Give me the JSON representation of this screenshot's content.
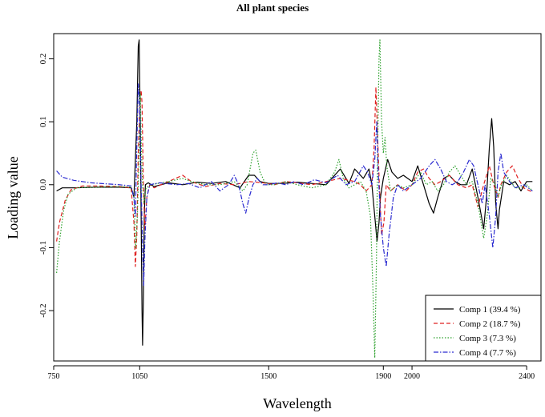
{
  "chart_data": {
    "type": "line",
    "title": "All plant species",
    "xlabel": "Wavelength",
    "ylabel": "Loading value",
    "xlim": [
      750,
      2450
    ],
    "ylim": [
      -0.28,
      0.24
    ],
    "x_ticks": [
      {
        "value": 750,
        "label": "750"
      },
      {
        "value": 1050,
        "label": "1050"
      },
      {
        "value": 1500,
        "label": "1500"
      },
      {
        "value": 1900,
        "label": "1900"
      },
      {
        "value": 2000,
        "label": "2000"
      },
      {
        "value": 2400,
        "label": "2400"
      }
    ],
    "y_ticks": [
      {
        "value": 0.2,
        "label": "0.2"
      },
      {
        "value": 0.1,
        "label": "0.1"
      },
      {
        "value": 0.0,
        "label": "0.0"
      },
      {
        "value": -0.1,
        "label": "-0.1"
      },
      {
        "value": -0.2,
        "label": "-0.2"
      }
    ],
    "grid": false,
    "legend_position": "bottom-right",
    "series": [
      {
        "name": "Comp 1 (39.4 %)",
        "color": "#000000",
        "dash": "solid",
        "points": [
          [
            760,
            -0.01
          ],
          [
            780,
            -0.005
          ],
          [
            820,
            -0.005
          ],
          [
            900,
            -0.004
          ],
          [
            980,
            -0.004
          ],
          [
            1020,
            -0.005
          ],
          [
            1030,
            -0.02
          ],
          [
            1040,
            0.1
          ],
          [
            1045,
            0.22
          ],
          [
            1048,
            0.23
          ],
          [
            1052,
            0.1
          ],
          [
            1055,
            -0.05
          ],
          [
            1058,
            -0.2
          ],
          [
            1060,
            -0.255
          ],
          [
            1063,
            -0.18
          ],
          [
            1066,
            -0.05
          ],
          [
            1070,
            0.0
          ],
          [
            1080,
            0.003
          ],
          [
            1100,
            -0.003
          ],
          [
            1150,
            0.003
          ],
          [
            1200,
            0.0
          ],
          [
            1250,
            0.004
          ],
          [
            1300,
            0.002
          ],
          [
            1350,
            0.005
          ],
          [
            1400,
            -0.005
          ],
          [
            1430,
            0.015
          ],
          [
            1450,
            0.015
          ],
          [
            1470,
            0.005
          ],
          [
            1500,
            0.002
          ],
          [
            1550,
            0.002
          ],
          [
            1600,
            0.004
          ],
          [
            1650,
            0.002
          ],
          [
            1700,
            0.0
          ],
          [
            1750,
            0.025
          ],
          [
            1780,
            0.002
          ],
          [
            1800,
            0.025
          ],
          [
            1810,
            0.02
          ],
          [
            1830,
            0.01
          ],
          [
            1850,
            0.025
          ],
          [
            1860,
            0.0
          ],
          [
            1870,
            -0.05
          ],
          [
            1878,
            -0.09
          ],
          [
            1885,
            -0.06
          ],
          [
            1890,
            -0.02
          ],
          [
            1900,
            0.01
          ],
          [
            1915,
            0.04
          ],
          [
            1930,
            0.02
          ],
          [
            1950,
            0.01
          ],
          [
            1970,
            0.015
          ],
          [
            2000,
            0.005
          ],
          [
            2020,
            0.03
          ],
          [
            2040,
            0.0
          ],
          [
            2060,
            -0.03
          ],
          [
            2075,
            -0.045
          ],
          [
            2090,
            -0.02
          ],
          [
            2110,
            0.01
          ],
          [
            2130,
            0.015
          ],
          [
            2150,
            0.005
          ],
          [
            2170,
            0.0
          ],
          [
            2190,
            0.0
          ],
          [
            2210,
            0.025
          ],
          [
            2230,
            -0.02
          ],
          [
            2250,
            -0.07
          ],
          [
            2260,
            -0.02
          ],
          [
            2270,
            0.06
          ],
          [
            2278,
            0.105
          ],
          [
            2285,
            0.06
          ],
          [
            2292,
            -0.03
          ],
          [
            2300,
            -0.07
          ],
          [
            2305,
            -0.04
          ],
          [
            2320,
            0.005
          ],
          [
            2340,
            0.0
          ],
          [
            2360,
            0.005
          ],
          [
            2380,
            -0.01
          ],
          [
            2400,
            0.005
          ],
          [
            2420,
            0.005
          ]
        ]
      },
      {
        "name": "Comp 2 (18.7 %)",
        "color": "#df2020",
        "dash": "dashed",
        "points": [
          [
            760,
            -0.09
          ],
          [
            770,
            -0.06
          ],
          [
            790,
            -0.025
          ],
          [
            810,
            -0.008
          ],
          [
            850,
            -0.002
          ],
          [
            900,
            -0.002
          ],
          [
            980,
            -0.003
          ],
          [
            1020,
            -0.005
          ],
          [
            1030,
            -0.06
          ],
          [
            1035,
            -0.13
          ],
          [
            1040,
            -0.08
          ],
          [
            1045,
            0.05
          ],
          [
            1050,
            0.12
          ],
          [
            1055,
            0.15
          ],
          [
            1058,
            0.13
          ],
          [
            1063,
            0.0
          ],
          [
            1068,
            -0.07
          ],
          [
            1075,
            -0.02
          ],
          [
            1085,
            0.0
          ],
          [
            1100,
            -0.005
          ],
          [
            1150,
            0.005
          ],
          [
            1200,
            0.015
          ],
          [
            1230,
            0.005
          ],
          [
            1280,
            -0.003
          ],
          [
            1330,
            0.002
          ],
          [
            1380,
            0.0
          ],
          [
            1430,
            0.005
          ],
          [
            1480,
            0.003
          ],
          [
            1520,
            0.0
          ],
          [
            1560,
            0.005
          ],
          [
            1600,
            0.003
          ],
          [
            1650,
            0.0
          ],
          [
            1700,
            0.005
          ],
          [
            1750,
            0.01
          ],
          [
            1800,
            0.005
          ],
          [
            1820,
            0.0
          ],
          [
            1840,
            -0.01
          ],
          [
            1860,
            0.0
          ],
          [
            1868,
            0.06
          ],
          [
            1874,
            0.155
          ],
          [
            1880,
            0.08
          ],
          [
            1886,
            0.0
          ],
          [
            1894,
            -0.08
          ],
          [
            1902,
            -0.06
          ],
          [
            1910,
            0.0
          ],
          [
            1925,
            -0.01
          ],
          [
            1950,
            0.0
          ],
          [
            1980,
            -0.01
          ],
          [
            2000,
            0.0
          ],
          [
            2020,
            0.02
          ],
          [
            2040,
            0.025
          ],
          [
            2060,
            0.01
          ],
          [
            2080,
            0.0
          ],
          [
            2100,
            0.005
          ],
          [
            2130,
            0.015
          ],
          [
            2160,
            0.0
          ],
          [
            2190,
            -0.005
          ],
          [
            2210,
            0.0
          ],
          [
            2230,
            -0.035
          ],
          [
            2250,
            0.0
          ],
          [
            2270,
            0.03
          ],
          [
            2285,
            0.0
          ],
          [
            2300,
            -0.02
          ],
          [
            2310,
            0.0
          ],
          [
            2330,
            0.02
          ],
          [
            2350,
            0.03
          ],
          [
            2370,
            0.01
          ],
          [
            2390,
            -0.005
          ],
          [
            2420,
            -0.012
          ]
        ]
      },
      {
        "name": "Comp 3 (7.3 %)",
        "color": "#2ca02c",
        "dash": "dotted",
        "points": [
          [
            760,
            -0.14
          ],
          [
            770,
            -0.09
          ],
          [
            785,
            -0.04
          ],
          [
            800,
            -0.015
          ],
          [
            830,
            -0.005
          ],
          [
            880,
            -0.004
          ],
          [
            980,
            -0.003
          ],
          [
            1020,
            -0.004
          ],
          [
            1030,
            -0.02
          ],
          [
            1036,
            -0.1
          ],
          [
            1042,
            -0.05
          ],
          [
            1048,
            0.05
          ],
          [
            1052,
            0.145
          ],
          [
            1056,
            0.06
          ],
          [
            1060,
            0.0
          ],
          [
            1065,
            -0.03
          ],
          [
            1072,
            -0.005
          ],
          [
            1090,
            0.0
          ],
          [
            1150,
            0.005
          ],
          [
            1200,
            0.01
          ],
          [
            1230,
            0.005
          ],
          [
            1280,
            0.0
          ],
          [
            1330,
            0.0
          ],
          [
            1380,
            0.005
          ],
          [
            1410,
            -0.01
          ],
          [
            1425,
            0.0
          ],
          [
            1445,
            0.05
          ],
          [
            1455,
            0.055
          ],
          [
            1470,
            0.02
          ],
          [
            1490,
            0.0
          ],
          [
            1520,
            0.0
          ],
          [
            1560,
            0.005
          ],
          [
            1600,
            0.0
          ],
          [
            1650,
            -0.005
          ],
          [
            1700,
            0.0
          ],
          [
            1730,
            0.02
          ],
          [
            1745,
            0.04
          ],
          [
            1760,
            0.01
          ],
          [
            1780,
            -0.005
          ],
          [
            1800,
            0.0
          ],
          [
            1820,
            0.005
          ],
          [
            1840,
            -0.01
          ],
          [
            1855,
            -0.05
          ],
          [
            1864,
            -0.17
          ],
          [
            1870,
            -0.275
          ],
          [
            1876,
            -0.12
          ],
          [
            1880,
            0.05
          ],
          [
            1885,
            0.2
          ],
          [
            1888,
            0.23
          ],
          [
            1894,
            0.1
          ],
          [
            1900,
            0.05
          ],
          [
            1906,
            0.075
          ],
          [
            1912,
            0.03
          ],
          [
            1925,
            -0.01
          ],
          [
            1950,
            0.0
          ],
          [
            1970,
            -0.005
          ],
          [
            2000,
            0.0
          ],
          [
            2030,
            0.02
          ],
          [
            2050,
            0.0
          ],
          [
            2070,
            0.005
          ],
          [
            2090,
            -0.01
          ],
          [
            2110,
            0.0
          ],
          [
            2130,
            0.02
          ],
          [
            2150,
            0.03
          ],
          [
            2170,
            0.015
          ],
          [
            2190,
            0.0
          ],
          [
            2210,
            0.005
          ],
          [
            2230,
            -0.03
          ],
          [
            2250,
            -0.085
          ],
          [
            2262,
            -0.05
          ],
          [
            2275,
            0.01
          ],
          [
            2290,
            0.0
          ],
          [
            2300,
            -0.02
          ],
          [
            2312,
            0.0
          ],
          [
            2330,
            0.015
          ],
          [
            2345,
            0.005
          ],
          [
            2360,
            -0.005
          ],
          [
            2380,
            -0.005
          ],
          [
            2400,
            0.0
          ],
          [
            2420,
            -0.01
          ]
        ]
      },
      {
        "name": "Comp 4 (7.7 %)",
        "color": "#2a2ad0",
        "dash": "dashdot",
        "points": [
          [
            760,
            0.022
          ],
          [
            780,
            0.012
          ],
          [
            820,
            0.007
          ],
          [
            880,
            0.003
          ],
          [
            980,
            0.0
          ],
          [
            1020,
            -0.002
          ],
          [
            1030,
            -0.02
          ],
          [
            1035,
            -0.05
          ],
          [
            1040,
            0.06
          ],
          [
            1045,
            0.16
          ],
          [
            1050,
            0.12
          ],
          [
            1055,
            0.0
          ],
          [
            1060,
            -0.1
          ],
          [
            1064,
            -0.16
          ],
          [
            1068,
            -0.09
          ],
          [
            1075,
            -0.02
          ],
          [
            1085,
            0.0
          ],
          [
            1120,
            0.003
          ],
          [
            1180,
            0.0
          ],
          [
            1220,
            0.002
          ],
          [
            1260,
            -0.005
          ],
          [
            1300,
            0.005
          ],
          [
            1330,
            -0.01
          ],
          [
            1360,
            0.0
          ],
          [
            1380,
            0.015
          ],
          [
            1395,
            0.0
          ],
          [
            1410,
            -0.03
          ],
          [
            1420,
            -0.045
          ],
          [
            1432,
            -0.02
          ],
          [
            1445,
            0.0
          ],
          [
            1460,
            0.01
          ],
          [
            1480,
            0.0
          ],
          [
            1500,
            0.0
          ],
          [
            1530,
            0.003
          ],
          [
            1560,
            0.0
          ],
          [
            1590,
            0.005
          ],
          [
            1620,
            0.0
          ],
          [
            1660,
            0.008
          ],
          [
            1700,
            0.003
          ],
          [
            1740,
            0.015
          ],
          [
            1770,
            0.0
          ],
          [
            1800,
            0.005
          ],
          [
            1830,
            0.03
          ],
          [
            1845,
            0.02
          ],
          [
            1860,
            0.0
          ],
          [
            1870,
            0.04
          ],
          [
            1877,
            0.1
          ],
          [
            1882,
            0.02
          ],
          [
            1890,
            -0.05
          ],
          [
            1900,
            -0.1
          ],
          [
            1910,
            -0.13
          ],
          [
            1920,
            -0.08
          ],
          [
            1935,
            -0.02
          ],
          [
            1950,
            0.0
          ],
          [
            1970,
            -0.01
          ],
          [
            2000,
            0.0
          ],
          [
            2030,
            0.01
          ],
          [
            2060,
            0.03
          ],
          [
            2080,
            0.04
          ],
          [
            2100,
            0.025
          ],
          [
            2120,
            0.005
          ],
          [
            2140,
            0.0
          ],
          [
            2160,
            0.005
          ],
          [
            2180,
            0.02
          ],
          [
            2200,
            0.04
          ],
          [
            2215,
            0.03
          ],
          [
            2230,
            0.0
          ],
          [
            2245,
            -0.03
          ],
          [
            2255,
            0.0
          ],
          [
            2270,
            -0.05
          ],
          [
            2282,
            -0.1
          ],
          [
            2292,
            -0.05
          ],
          [
            2300,
            0.02
          ],
          [
            2310,
            0.05
          ],
          [
            2320,
            0.02
          ],
          [
            2340,
            0.005
          ],
          [
            2360,
            -0.005
          ],
          [
            2390,
            0.0
          ],
          [
            2420,
            -0.01
          ]
        ]
      }
    ]
  }
}
